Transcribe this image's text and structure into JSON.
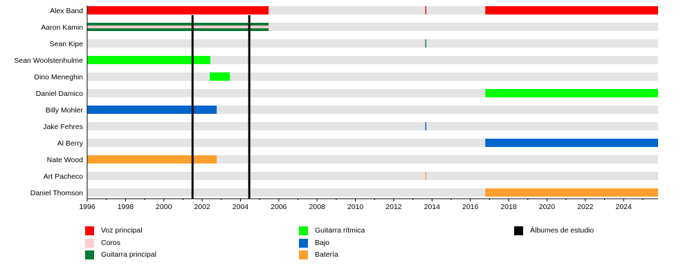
{
  "chart_data": {
    "type": "timeline",
    "title": "",
    "xlabel": "",
    "ylabel": "",
    "xlim": [
      1996,
      2025.8
    ],
    "x_ticks": [
      1996,
      1998,
      2000,
      2002,
      2004,
      2006,
      2008,
      2010,
      2012,
      2014,
      2016,
      2018,
      2020,
      2022,
      2024
    ],
    "grid": false,
    "roles": [
      {
        "key": "voz",
        "label": "Voz principal",
        "color": "#ff0000"
      },
      {
        "key": "coros",
        "label": "Coros",
        "color": "#ffcccc"
      },
      {
        "key": "gp",
        "label": "Guitarra principal",
        "color": "#0a7a3a"
      },
      {
        "key": "gr",
        "label": "Guitarra rítmica",
        "color": "#00ff00"
      },
      {
        "key": "bajo",
        "label": "Bajo",
        "color": "#0066cc"
      },
      {
        "key": "bat",
        "label": "Batería",
        "color": "#ff9f2f"
      },
      {
        "key": "alb",
        "label": "Álbumes de estudio",
        "color": "#000000"
      }
    ],
    "members": [
      {
        "name": "Alex Band",
        "bars": [
          {
            "role": "voz",
            "from": 1996,
            "to": 2005.47
          },
          {
            "role": "voz",
            "from": 2013.65,
            "to": 2013.7
          },
          {
            "role": "voz",
            "from": 2016.78,
            "to": 2025.8
          }
        ]
      },
      {
        "name": "Aaron Kamin",
        "bars": [
          {
            "role": "gp",
            "from": 1996,
            "to": 2005.47
          },
          {
            "role": "coros",
            "from": 1996,
            "to": 2005.47,
            "thin": true
          }
        ]
      },
      {
        "name": "Sean Kipe",
        "bars": [
          {
            "role": "gp",
            "from": 2013.65,
            "to": 2013.7
          }
        ]
      },
      {
        "name": "Sean Woolstenhulme",
        "bars": [
          {
            "role": "gr",
            "from": 1996,
            "to": 2002.43
          }
        ]
      },
      {
        "name": "Dino Meneghin",
        "bars": [
          {
            "role": "gr",
            "from": 2002.4,
            "to": 2003.45
          }
        ]
      },
      {
        "name": "Daniel Damico",
        "bars": [
          {
            "role": "gr",
            "from": 2016.78,
            "to": 2025.8
          }
        ]
      },
      {
        "name": "Billy Mohler",
        "bars": [
          {
            "role": "bajo",
            "from": 1996,
            "to": 2002.76
          }
        ]
      },
      {
        "name": "Jake Fehres",
        "bars": [
          {
            "role": "bajo",
            "from": 2013.65,
            "to": 2013.7
          }
        ]
      },
      {
        "name": "Al Berry",
        "bars": [
          {
            "role": "bajo",
            "from": 2016.78,
            "to": 2025.8
          }
        ]
      },
      {
        "name": "Nate Wood",
        "bars": [
          {
            "role": "bat",
            "from": 1996,
            "to": 2002.76
          }
        ]
      },
      {
        "name": "Art Pacheco",
        "bars": [
          {
            "role": "bat",
            "from": 2013.65,
            "to": 2013.7
          }
        ]
      },
      {
        "name": "Daniel Thomson",
        "bars": [
          {
            "role": "bat",
            "from": 2016.78,
            "to": 2025.8
          }
        ]
      }
    ],
    "albums": [
      2001.5,
      2004.46
    ],
    "legend_position": "bottom"
  }
}
